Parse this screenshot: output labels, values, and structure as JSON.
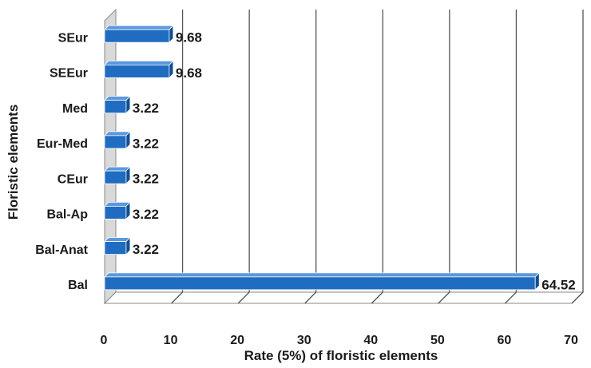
{
  "chart_data": {
    "type": "bar",
    "orientation": "horizontal",
    "style": "3d",
    "categories": [
      "SEur",
      "SEEur",
      "Med",
      "Eur-Med",
      "CEur",
      "Bal-Ap",
      "Bal-Anat",
      "Bal"
    ],
    "values": [
      9.68,
      9.68,
      3.22,
      3.22,
      3.22,
      3.22,
      3.22,
      64.52
    ],
    "data_labels": [
      "9.68",
      "9.68",
      "3.22",
      "3.22",
      "3.22",
      "3.22",
      "3.22",
      "64.52"
    ],
    "xlabel": "Rate (5%) of floristic elements",
    "ylabel": "Floristic elements",
    "xlim": [
      0,
      70
    ],
    "xticks": [
      "0",
      "10",
      "20",
      "30",
      "40",
      "50",
      "60",
      "70"
    ],
    "grid": true,
    "legend": "none",
    "colors": {
      "bar_front": "#1f6cc0",
      "bar_top": "#5b98dd",
      "bar_end": "#0f4f93",
      "grid": "#555555",
      "wall": "#d9d9d9"
    }
  }
}
